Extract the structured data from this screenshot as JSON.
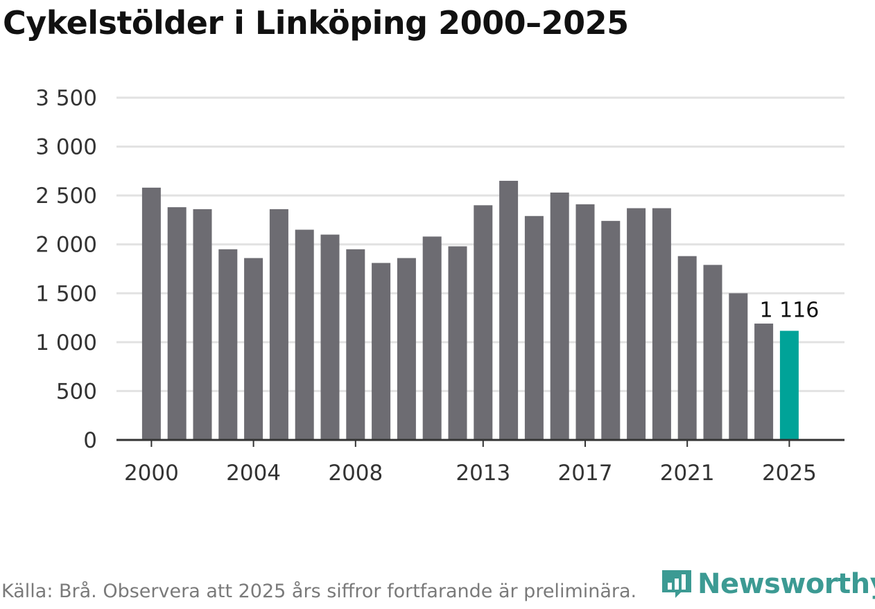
{
  "chart_data": {
    "type": "bar",
    "title": "Cykelstölder i Linköping 2000–2025",
    "categories": [
      "2000",
      "2001",
      "2002",
      "2003",
      "2004",
      "2005",
      "2006",
      "2007",
      "2008",
      "2009",
      "2010",
      "2011",
      "2012",
      "2013",
      "2014",
      "2015",
      "2016",
      "2017",
      "2018",
      "2019",
      "2020",
      "2021",
      "2022",
      "2023",
      "2024",
      "2025"
    ],
    "values": [
      2580,
      2380,
      2360,
      1950,
      1860,
      2360,
      2150,
      2100,
      1950,
      1810,
      1860,
      2080,
      1980,
      2400,
      2650,
      2290,
      2530,
      2410,
      2240,
      2370,
      2370,
      1880,
      1790,
      1500,
      1190,
      1116
    ],
    "xtick_labels": [
      "2000",
      "2004",
      "2008",
      "2013",
      "2017",
      "2021",
      "2025"
    ],
    "ytick_labels": [
      "0",
      "500",
      "1 000",
      "1 500",
      "2 000",
      "2 500",
      "3 000",
      "3 500"
    ],
    "ylim": [
      0,
      3500
    ],
    "ytick_step": 500,
    "highlight_category": "2025",
    "highlight_label": "1 116",
    "xlabel": "",
    "ylabel": "",
    "grid": true,
    "colors": {
      "bar": "#6d6c72",
      "highlight": "#00a398",
      "grid": "#e2e2e2",
      "axis": "#333333"
    }
  },
  "footer": {
    "source": "Källa: Brå. Observera att 2025 års siffror fortfarande är preliminära."
  },
  "brand": {
    "name": "Newsworthy",
    "icon": "bar-chart-speech-icon",
    "color": "#3c9a93"
  }
}
